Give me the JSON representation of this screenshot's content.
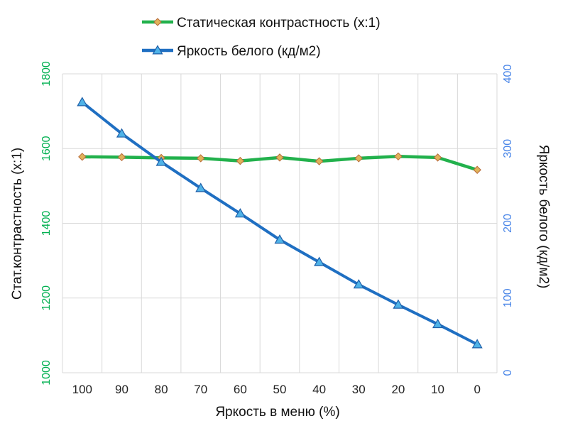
{
  "chart_data": {
    "type": "line",
    "categories": [
      "100",
      "90",
      "80",
      "70",
      "60",
      "50",
      "40",
      "30",
      "20",
      "10",
      "0"
    ],
    "xlabel": "Яркость в меню (%)",
    "ylabel_left": "Стат.контрастность  (x:1)",
    "ylabel_right": "Яркость белого (кд/м2)",
    "y_left": {
      "lim": [
        1000,
        1800
      ],
      "ticks": [
        "1000",
        "1200",
        "1400",
        "1600",
        "1800"
      ],
      "color": "#00b050"
    },
    "y_right": {
      "lim": [
        0,
        400
      ],
      "ticks": [
        "0",
        "100",
        "200",
        "300",
        "400"
      ],
      "color": "#4a86e8"
    },
    "grid": true,
    "legend_position": "top-center",
    "series": [
      {
        "name": "Статическая контрастность (x:1)",
        "axis": "left",
        "color": "#22b14c",
        "marker": "diamond",
        "marker_color": "#e0b35a",
        "values": [
          1578,
          1577,
          1575,
          1574,
          1567,
          1576,
          1566,
          1574,
          1579,
          1576,
          1543
        ]
      },
      {
        "name": "Яркость белого (кд/м2)",
        "axis": "right",
        "color": "#1f6fc2",
        "marker": "triangle",
        "marker_color": "#4fb3e8",
        "values": [
          362,
          320,
          282,
          247,
          213,
          178,
          148,
          118,
          91,
          65,
          38
        ]
      }
    ]
  }
}
